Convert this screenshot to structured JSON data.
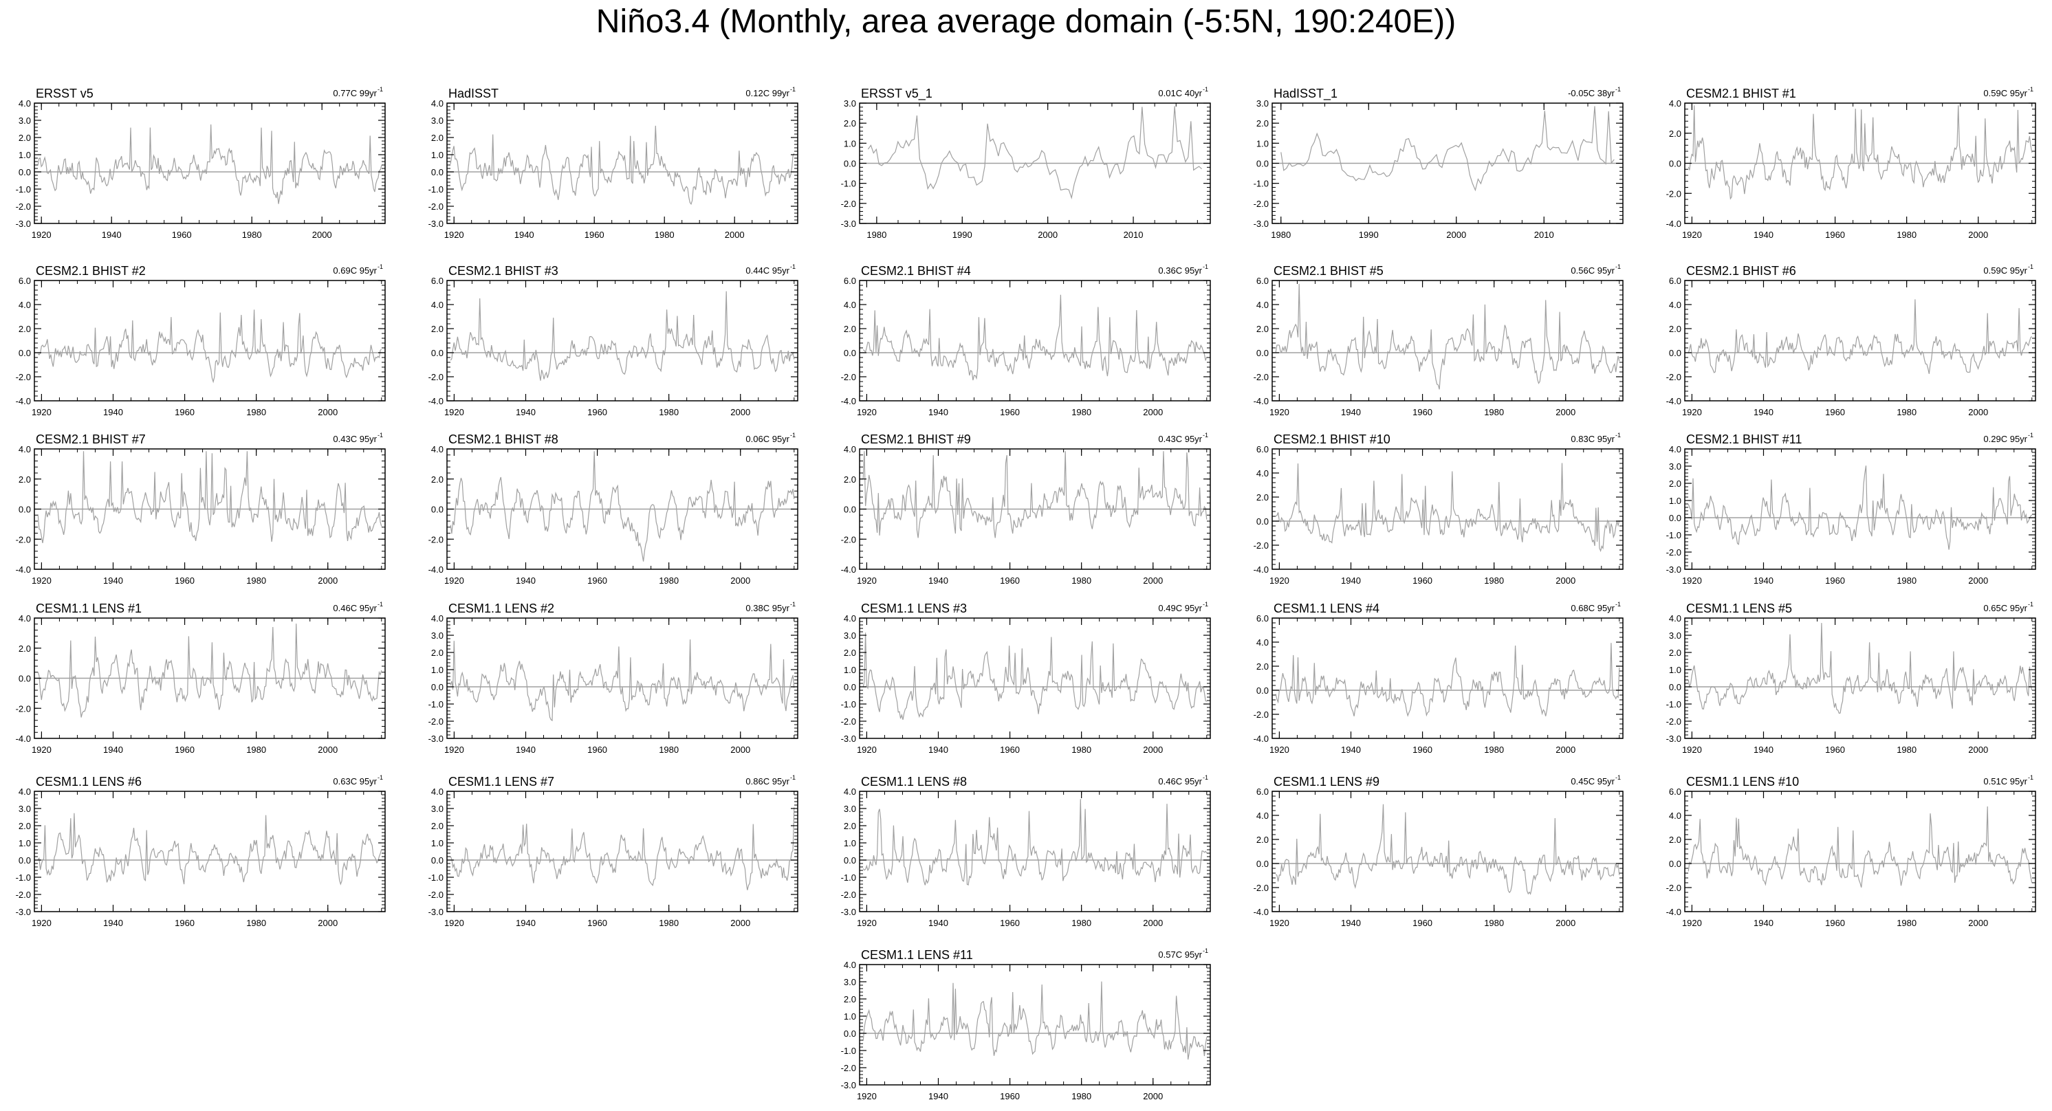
{
  "page_title": "Niño3.4 (Monthly, area average domain (-5:5N, 190:240E))",
  "series_color": "#a0a0a0",
  "zero_line_color": "#a0a0a0",
  "chart_data": [
    {
      "type": "line",
      "title": "ERSST v5",
      "trend": "0.77C 99yr",
      "trend_sup": "-1",
      "xlim": [
        1918,
        2018
      ],
      "ylim": [
        -3,
        4
      ],
      "yticks": [
        -3,
        -2,
        -1,
        0,
        1,
        2,
        3,
        4
      ],
      "ytick_labels": [
        "-3.0",
        "-2.0",
        "-1.0",
        "0.0",
        "1.0",
        "2.0",
        "3.0",
        "4.0"
      ],
      "xticks": [
        1920,
        1940,
        1960,
        1980,
        2000
      ]
    },
    {
      "type": "line",
      "title": "HadISST",
      "trend": "0.12C 99yr",
      "trend_sup": "-1",
      "xlim": [
        1918,
        2018
      ],
      "ylim": [
        -3,
        4
      ],
      "yticks": [
        -3,
        -2,
        -1,
        0,
        1,
        2,
        3,
        4
      ],
      "ytick_labels": [
        "-3.0",
        "-2.0",
        "-1.0",
        "0.0",
        "1.0",
        "2.0",
        "3.0",
        "4.0"
      ],
      "xticks": [
        1920,
        1940,
        1960,
        1980,
        2000
      ]
    },
    {
      "type": "line",
      "title": "ERSST v5_1",
      "trend": "0.01C 40yr",
      "trend_sup": "-1",
      "xlim": [
        1978,
        2019
      ],
      "ylim": [
        -3,
        3
      ],
      "yticks": [
        -3,
        -2,
        -1,
        0,
        1,
        2,
        3
      ],
      "ytick_labels": [
        "-3.0",
        "-2.0",
        "-1.0",
        "0.0",
        "1.0",
        "2.0",
        "3.0"
      ],
      "xticks": [
        1980,
        1990,
        2000,
        2010
      ]
    },
    {
      "type": "line",
      "title": "HadISST_1",
      "trend": "-0.05C 38yr",
      "trend_sup": "-1",
      "xlim": [
        1979,
        2019
      ],
      "ylim": [
        -3,
        3
      ],
      "yticks": [
        -3,
        -2,
        -1,
        0,
        1,
        2,
        3
      ],
      "ytick_labels": [
        "-3.0",
        "-2.0",
        "-1.0",
        "0.0",
        "1.0",
        "2.0",
        "3.0"
      ],
      "xticks": [
        1980,
        1990,
        2000,
        2010
      ]
    },
    {
      "type": "line",
      "title": "CESM2.1 BHIST #1",
      "trend": "0.59C 95yr",
      "trend_sup": "-1",
      "xlim": [
        1918,
        2016
      ],
      "ylim": [
        -4,
        4
      ],
      "yticks": [
        -4,
        -2,
        0,
        2,
        4
      ],
      "ytick_labels": [
        "-4.0",
        "-2.0",
        "0.0",
        "2.0",
        "4.0"
      ],
      "xticks": [
        1920,
        1940,
        1960,
        1980,
        2000
      ]
    },
    {
      "type": "line",
      "title": "CESM2.1 BHIST #2",
      "trend": "0.69C 95yr",
      "trend_sup": "-1",
      "xlim": [
        1918,
        2016
      ],
      "ylim": [
        -4,
        6
      ],
      "yticks": [
        -4,
        -2,
        0,
        2,
        4,
        6
      ],
      "ytick_labels": [
        "-4.0",
        "-2.0",
        "0.0",
        "2.0",
        "4.0",
        "6.0"
      ],
      "xticks": [
        1920,
        1940,
        1960,
        1980,
        2000
      ]
    },
    {
      "type": "line",
      "title": "CESM2.1 BHIST #3",
      "trend": "0.44C 95yr",
      "trend_sup": "-1",
      "xlim": [
        1918,
        2016
      ],
      "ylim": [
        -4,
        6
      ],
      "yticks": [
        -4,
        -2,
        0,
        2,
        4,
        6
      ],
      "ytick_labels": [
        "-4.0",
        "-2.0",
        "0.0",
        "2.0",
        "4.0",
        "6.0"
      ],
      "xticks": [
        1920,
        1940,
        1960,
        1980,
        2000
      ]
    },
    {
      "type": "line",
      "title": "CESM2.1 BHIST #4",
      "trend": "0.36C 95yr",
      "trend_sup": "-1",
      "xlim": [
        1918,
        2016
      ],
      "ylim": [
        -4,
        6
      ],
      "yticks": [
        -4,
        -2,
        0,
        2,
        4,
        6
      ],
      "ytick_labels": [
        "-4.0",
        "-2.0",
        "0.0",
        "2.0",
        "4.0",
        "6.0"
      ],
      "xticks": [
        1920,
        1940,
        1960,
        1980,
        2000
      ]
    },
    {
      "type": "line",
      "title": "CESM2.1 BHIST #5",
      "trend": "0.56C 95yr",
      "trend_sup": "-1",
      "xlim": [
        1918,
        2016
      ],
      "ylim": [
        -4,
        6
      ],
      "yticks": [
        -4,
        -2,
        0,
        2,
        4,
        6
      ],
      "ytick_labels": [
        "-4.0",
        "-2.0",
        "0.0",
        "2.0",
        "4.0",
        "6.0"
      ],
      "xticks": [
        1920,
        1940,
        1960,
        1980,
        2000
      ]
    },
    {
      "type": "line",
      "title": "CESM2.1 BHIST #6",
      "trend": "0.59C 95yr",
      "trend_sup": "-1",
      "xlim": [
        1918,
        2016
      ],
      "ylim": [
        -4,
        6
      ],
      "yticks": [
        -4,
        -2,
        0,
        2,
        4,
        6
      ],
      "ytick_labels": [
        "-4.0",
        "-2.0",
        "0.0",
        "2.0",
        "4.0",
        "6.0"
      ],
      "xticks": [
        1920,
        1940,
        1960,
        1980,
        2000
      ]
    },
    {
      "type": "line",
      "title": "CESM2.1 BHIST #7",
      "trend": "0.43C 95yr",
      "trend_sup": "-1",
      "xlim": [
        1918,
        2016
      ],
      "ylim": [
        -4,
        4
      ],
      "yticks": [
        -4,
        -2,
        0,
        2,
        4
      ],
      "ytick_labels": [
        "-4.0",
        "-2.0",
        "0.0",
        "2.0",
        "4.0"
      ],
      "xticks": [
        1920,
        1940,
        1960,
        1980,
        2000
      ]
    },
    {
      "type": "line",
      "title": "CESM2.1 BHIST #8",
      "trend": "0.06C 95yr",
      "trend_sup": "-1",
      "xlim": [
        1918,
        2016
      ],
      "ylim": [
        -4,
        4
      ],
      "yticks": [
        -4,
        -2,
        0,
        2,
        4
      ],
      "ytick_labels": [
        "-4.0",
        "-2.0",
        "0.0",
        "2.0",
        "4.0"
      ],
      "xticks": [
        1920,
        1940,
        1960,
        1980,
        2000
      ]
    },
    {
      "type": "line",
      "title": "CESM2.1 BHIST #9",
      "trend": "0.43C 95yr",
      "trend_sup": "-1",
      "xlim": [
        1918,
        2016
      ],
      "ylim": [
        -4,
        4
      ],
      "yticks": [
        -4,
        -2,
        0,
        2,
        4
      ],
      "ytick_labels": [
        "-4.0",
        "-2.0",
        "0.0",
        "2.0",
        "4.0"
      ],
      "xticks": [
        1920,
        1940,
        1960,
        1980,
        2000
      ]
    },
    {
      "type": "line",
      "title": "CESM2.1 BHIST #10",
      "trend": "0.83C 95yr",
      "trend_sup": "-1",
      "xlim": [
        1918,
        2016
      ],
      "ylim": [
        -4,
        6
      ],
      "yticks": [
        -4,
        -2,
        0,
        2,
        4,
        6
      ],
      "ytick_labels": [
        "-4.0",
        "-2.0",
        "0.0",
        "2.0",
        "4.0",
        "6.0"
      ],
      "xticks": [
        1920,
        1940,
        1960,
        1980,
        2000
      ]
    },
    {
      "type": "line",
      "title": "CESM2.1 BHIST #11",
      "trend": "0.29C 95yr",
      "trend_sup": "-1",
      "xlim": [
        1918,
        2016
      ],
      "ylim": [
        -3,
        4
      ],
      "yticks": [
        -3,
        -2,
        -1,
        0,
        1,
        2,
        3,
        4
      ],
      "ytick_labels": [
        "-3.0",
        "-2.0",
        "-1.0",
        "0.0",
        "1.0",
        "2.0",
        "3.0",
        "4.0"
      ],
      "xticks": [
        1920,
        1940,
        1960,
        1980,
        2000
      ]
    },
    {
      "type": "line",
      "title": "CESM1.1 LENS #1",
      "trend": "0.46C 95yr",
      "trend_sup": "-1",
      "xlim": [
        1918,
        2016
      ],
      "ylim": [
        -4,
        4
      ],
      "yticks": [
        -4,
        -2,
        0,
        2,
        4
      ],
      "ytick_labels": [
        "-4.0",
        "-2.0",
        "0.0",
        "2.0",
        "4.0"
      ],
      "xticks": [
        1920,
        1940,
        1960,
        1980,
        2000
      ]
    },
    {
      "type": "line",
      "title": "CESM1.1 LENS #2",
      "trend": "0.38C 95yr",
      "trend_sup": "-1",
      "xlim": [
        1918,
        2016
      ],
      "ylim": [
        -3,
        4
      ],
      "yticks": [
        -3,
        -2,
        -1,
        0,
        1,
        2,
        3,
        4
      ],
      "ytick_labels": [
        "-3.0",
        "-2.0",
        "-1.0",
        "0.0",
        "1.0",
        "2.0",
        "3.0",
        "4.0"
      ],
      "xticks": [
        1920,
        1940,
        1960,
        1980,
        2000
      ]
    },
    {
      "type": "line",
      "title": "CESM1.1 LENS #3",
      "trend": "0.49C 95yr",
      "trend_sup": "-1",
      "xlim": [
        1918,
        2016
      ],
      "ylim": [
        -3,
        4
      ],
      "yticks": [
        -3,
        -2,
        -1,
        0,
        1,
        2,
        3,
        4
      ],
      "ytick_labels": [
        "-3.0",
        "-2.0",
        "-1.0",
        "0.0",
        "1.0",
        "2.0",
        "3.0",
        "4.0"
      ],
      "xticks": [
        1920,
        1940,
        1960,
        1980,
        2000
      ]
    },
    {
      "type": "line",
      "title": "CESM1.1 LENS #4",
      "trend": "0.68C 95yr",
      "trend_sup": "-1",
      "xlim": [
        1918,
        2016
      ],
      "ylim": [
        -4,
        6
      ],
      "yticks": [
        -4,
        -2,
        0,
        2,
        4,
        6
      ],
      "ytick_labels": [
        "-4.0",
        "-2.0",
        "0.0",
        "2.0",
        "4.0",
        "6.0"
      ],
      "xticks": [
        1920,
        1940,
        1960,
        1980,
        2000
      ]
    },
    {
      "type": "line",
      "title": "CESM1.1 LENS #5",
      "trend": "0.65C 95yr",
      "trend_sup": "-1",
      "xlim": [
        1918,
        2016
      ],
      "ylim": [
        -3,
        4
      ],
      "yticks": [
        -3,
        -2,
        -1,
        0,
        1,
        2,
        3,
        4
      ],
      "ytick_labels": [
        "-3.0",
        "-2.0",
        "-1.0",
        "0.0",
        "1.0",
        "2.0",
        "3.0",
        "4.0"
      ],
      "xticks": [
        1920,
        1940,
        1960,
        1980,
        2000
      ]
    },
    {
      "type": "line",
      "title": "CESM1.1 LENS #6",
      "trend": "0.63C 95yr",
      "trend_sup": "-1",
      "xlim": [
        1918,
        2016
      ],
      "ylim": [
        -3,
        4
      ],
      "yticks": [
        -3,
        -2,
        -1,
        0,
        1,
        2,
        3,
        4
      ],
      "ytick_labels": [
        "-3.0",
        "-2.0",
        "-1.0",
        "0.0",
        "1.0",
        "2.0",
        "3.0",
        "4.0"
      ],
      "xticks": [
        1920,
        1940,
        1960,
        1980,
        2000
      ]
    },
    {
      "type": "line",
      "title": "CESM1.1 LENS #7",
      "trend": "0.86C 95yr",
      "trend_sup": "-1",
      "xlim": [
        1918,
        2016
      ],
      "ylim": [
        -3,
        4
      ],
      "yticks": [
        -3,
        -2,
        -1,
        0,
        1,
        2,
        3,
        4
      ],
      "ytick_labels": [
        "-3.0",
        "-2.0",
        "-1.0",
        "0.0",
        "1.0",
        "2.0",
        "3.0",
        "4.0"
      ],
      "xticks": [
        1920,
        1940,
        1960,
        1980,
        2000
      ]
    },
    {
      "type": "line",
      "title": "CESM1.1 LENS #8",
      "trend": "0.46C 95yr",
      "trend_sup": "-1",
      "xlim": [
        1918,
        2016
      ],
      "ylim": [
        -3,
        4
      ],
      "yticks": [
        -3,
        -2,
        -1,
        0,
        1,
        2,
        3,
        4
      ],
      "ytick_labels": [
        "-3.0",
        "-2.0",
        "-1.0",
        "0.0",
        "1.0",
        "2.0",
        "3.0",
        "4.0"
      ],
      "xticks": [
        1920,
        1940,
        1960,
        1980,
        2000
      ]
    },
    {
      "type": "line",
      "title": "CESM1.1 LENS #9",
      "trend": "0.45C 95yr",
      "trend_sup": "-1",
      "xlim": [
        1918,
        2016
      ],
      "ylim": [
        -4,
        6
      ],
      "yticks": [
        -4,
        -2,
        0,
        2,
        4,
        6
      ],
      "ytick_labels": [
        "-4.0",
        "-2.0",
        "0.0",
        "2.0",
        "4.0",
        "6.0"
      ],
      "xticks": [
        1920,
        1940,
        1960,
        1980,
        2000
      ]
    },
    {
      "type": "line",
      "title": "CESM1.1 LENS #10",
      "trend": "0.51C 95yr",
      "trend_sup": "-1",
      "xlim": [
        1918,
        2016
      ],
      "ylim": [
        -4,
        6
      ],
      "yticks": [
        -4,
        -2,
        0,
        2,
        4,
        6
      ],
      "ytick_labels": [
        "-4.0",
        "-2.0",
        "0.0",
        "2.0",
        "4.0",
        "6.0"
      ],
      "xticks": [
        1920,
        1940,
        1960,
        1980,
        2000
      ]
    },
    {
      "type": "line",
      "title": "CESM1.1 LENS #11",
      "trend": "0.57C 95yr",
      "trend_sup": "-1",
      "xlim": [
        1918,
        2016
      ],
      "ylim": [
        -3,
        4
      ],
      "yticks": [
        -3,
        -2,
        -1,
        0,
        1,
        2,
        3,
        4
      ],
      "ytick_labels": [
        "-3.0",
        "-2.0",
        "-1.0",
        "0.0",
        "1.0",
        "2.0",
        "3.0",
        "4.0"
      ],
      "xticks": [
        1920,
        1940,
        1960,
        1980,
        2000
      ]
    }
  ]
}
